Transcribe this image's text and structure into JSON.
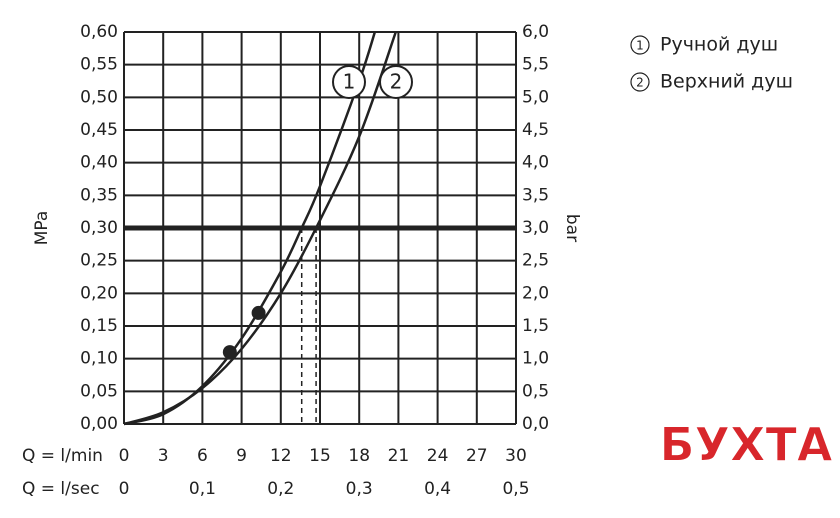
{
  "chart_data": {
    "type": "line",
    "ylabel": "MPa",
    "y2label": "bar",
    "xlabel": "Q = l/min",
    "x2label": "Q = l/sec",
    "xlim": [
      0,
      30
    ],
    "xticks": [
      0,
      3,
      6,
      9,
      12,
      15,
      18,
      21,
      24,
      27,
      30
    ],
    "x2lim": [
      0,
      0.5
    ],
    "x2ticks": [
      {
        "value": 0,
        "label": "0"
      },
      {
        "value": 0.1,
        "label": "0,1"
      },
      {
        "value": 0.2,
        "label": "0,2"
      },
      {
        "value": 0.3,
        "label": "0,3"
      },
      {
        "value": 0.4,
        "label": "0,4"
      },
      {
        "value": 0.5,
        "label": "0,5"
      }
    ],
    "ylim": [
      0,
      0.6
    ],
    "yticks": [
      {
        "value": 0,
        "label": "0,00"
      },
      {
        "value": 0.05,
        "label": "0,05"
      },
      {
        "value": 0.1,
        "label": "0,10"
      },
      {
        "value": 0.15,
        "label": "0,15"
      },
      {
        "value": 0.2,
        "label": "0,20"
      },
      {
        "value": 0.25,
        "label": "0,25"
      },
      {
        "value": 0.3,
        "label": "0,30"
      },
      {
        "value": 0.35,
        "label": "0,35"
      },
      {
        "value": 0.4,
        "label": "0,40"
      },
      {
        "value": 0.45,
        "label": "0,45"
      },
      {
        "value": 0.5,
        "label": "0,50"
      },
      {
        "value": 0.55,
        "label": "0,55"
      },
      {
        "value": 0.6,
        "label": "0,60"
      }
    ],
    "y2lim": [
      0,
      6
    ],
    "y2ticks": [
      {
        "value": 0,
        "label": "0,0"
      },
      {
        "value": 0.5,
        "label": "0,5"
      },
      {
        "value": 1,
        "label": "1,0"
      },
      {
        "value": 1.5,
        "label": "1,5"
      },
      {
        "value": 2,
        "label": "2,0"
      },
      {
        "value": 2.5,
        "label": "2,5"
      },
      {
        "value": 3,
        "label": "3,0"
      },
      {
        "value": 3.5,
        "label": "3,5"
      },
      {
        "value": 4,
        "label": "4,0"
      },
      {
        "value": 4.5,
        "label": "4,5"
      },
      {
        "value": 5,
        "label": "5,0"
      },
      {
        "value": 5.5,
        "label": "5,5"
      },
      {
        "value": 6,
        "label": "6,0"
      }
    ],
    "grid": true,
    "reference_line": 0.3,
    "series": [
      {
        "name": "Ручной душ",
        "label": "1",
        "color": "#222222",
        "x": [
          0,
          3,
          6,
          9,
          12,
          13.6,
          15,
          18,
          19.2
        ],
        "values": [
          0,
          0.015,
          0.058,
          0.131,
          0.233,
          0.3,
          0.364,
          0.525,
          0.6
        ],
        "marker": {
          "x": 10.3,
          "y": 0.17
        }
      },
      {
        "name": "Верхний душ",
        "label": "2",
        "color": "#222222",
        "x": [
          0,
          3,
          6,
          9,
          12,
          14.7,
          18,
          20.8
        ],
        "values": [
          0,
          0.018,
          0.055,
          0.115,
          0.2,
          0.3,
          0.44,
          0.6
        ],
        "marker": {
          "x": 8.1,
          "y": 0.11
        }
      }
    ],
    "drop_lines": [
      13.6,
      14.7
    ],
    "watermark": "БУХТА"
  }
}
